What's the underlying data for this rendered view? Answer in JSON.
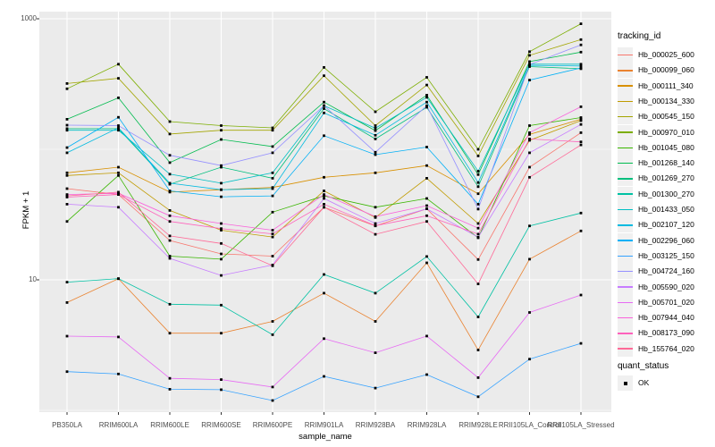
{
  "figure": {
    "y_axis": {
      "title": "FPKM + 1",
      "ticks": [
        {
          "value": 1000,
          "label": "1000"
        },
        {
          "value": 10,
          "label": "10"
        }
      ]
    },
    "x_axis": {
      "title": "sample_name"
    },
    "legend": {
      "tracking_title": "tracking_id",
      "quant_title": "quant_status",
      "quant_ok_label": "OK"
    },
    "colors": {
      "panel_bg": "#EBEBEB",
      "gridline": "#FFFFFF",
      "legend_key_bg": "#F0F0F0",
      "axis_text": "#4D4D4D",
      "tick_mark": "#333333",
      "point": "#000000"
    }
  },
  "chart_data": {
    "type": "line",
    "title": "",
    "xlabel": "sample_name",
    "ylabel": "FPKM + 1",
    "y_scale": "log10",
    "ylim": [
      1,
      1130
    ],
    "y_labeled_breaks": [
      1000,
      10
    ],
    "y_minor_gridlines": [
      100,
      1
    ],
    "grid": true,
    "legend_position": "right",
    "point_marker": "black-square",
    "quant_status": "OK",
    "categories": [
      "PB350LA",
      "RRIM600LA",
      "RRIM600LE",
      "RRIM600SE",
      "RRIM600PE",
      "RRIM901LA",
      "RRIM928BA",
      "RRIM928LA",
      "RRIM928LE",
      "RRII105LA_Control",
      "RRII105LA_Stressed"
    ],
    "series": [
      {
        "name": "Hb_000025_600",
        "color": "#F8766D",
        "values": [
          50,
          45,
          20,
          15.8,
          15.2,
          36,
          25.9,
          35,
          14.3,
          73,
          134
        ]
      },
      {
        "name": "Hb_000099_060",
        "color": "#EA8331",
        "values": [
          6.7,
          10.2,
          3.9,
          3.9,
          4.8,
          7.9,
          4.8,
          13.5,
          2.9,
          14.4,
          23.7
        ]
      },
      {
        "name": "Hb_000111_340",
        "color": "#D89000",
        "values": [
          66,
          73,
          47,
          49,
          51,
          61,
          66,
          75,
          45.7,
          130,
          170
        ]
      },
      {
        "name": "Hb_000134_330",
        "color": "#C09B00",
        "values": [
          63,
          66,
          34,
          24,
          21.3,
          48,
          30,
          60,
          27,
          117,
          166
        ]
      },
      {
        "name": "Hb_000545_150",
        "color": "#A3A500",
        "values": [
          319,
          350,
          131,
          140,
          140,
          366,
          152,
          311,
          89,
          525,
          692
        ]
      },
      {
        "name": "Hb_000970_010",
        "color": "#7CAE00",
        "values": [
          291,
          449,
          163,
          152,
          146,
          424,
          194,
          356,
          100,
          560,
          916
        ]
      },
      {
        "name": "Hb_001045_080",
        "color": "#39B600",
        "values": [
          28,
          63,
          15.2,
          14.4,
          33,
          44,
          36,
          42,
          21,
          152,
          175
        ]
      },
      {
        "name": "Hb_001268_140",
        "color": "#00BB4E",
        "values": [
          170,
          248,
          79,
          119,
          105,
          230,
          139,
          260,
          64,
          470,
          555
        ]
      },
      {
        "name": "Hb_001269_270",
        "color": "#00BF7D",
        "values": [
          144,
          144,
          54,
          73,
          60,
          205,
          120,
          210,
          51.7,
          430,
          414
        ]
      },
      {
        "name": "Hb_001300_270",
        "color": "#00C1A3",
        "values": [
          9.6,
          10.2,
          6.5,
          6.4,
          3.8,
          11,
          7.9,
          15.1,
          5.2,
          25.9,
          32.5
        ]
      },
      {
        "name": "Hb_001433_050",
        "color": "#00BFC4",
        "values": [
          140,
          140,
          64.5,
          55,
          66,
          216,
          145,
          250,
          68,
          449,
          449
        ]
      },
      {
        "name": "Hb_002107_120",
        "color": "#00BAE0",
        "values": [
          94,
          146,
          55,
          49,
          50,
          190,
          128,
          230,
          55.6,
          440,
          435
        ]
      },
      {
        "name": "Hb_002296_060",
        "color": "#00B0F6",
        "values": [
          103,
          176,
          48,
          43.3,
          44,
          127,
          91,
          104,
          38,
          339,
          420
        ]
      },
      {
        "name": "Hb_003125_150",
        "color": "#35A2FF",
        "values": [
          1.98,
          1.9,
          1.45,
          1.44,
          1.19,
          1.82,
          1.48,
          1.88,
          1.27,
          2.47,
          3.26
        ]
      },
      {
        "name": "Hb_004724_160",
        "color": "#9590FF",
        "values": [
          153,
          152,
          90,
          75,
          94,
          216,
          95,
          216,
          34.8,
          445,
          631
        ]
      },
      {
        "name": "Hb_005590_020",
        "color": "#C77CFF",
        "values": [
          38,
          36,
          14.6,
          10.8,
          13,
          42,
          27,
          35,
          21.2,
          94,
          155
        ]
      },
      {
        "name": "Hb_005701_020",
        "color": "#E76BF3",
        "values": [
          3.7,
          3.65,
          1.76,
          1.72,
          1.51,
          3.54,
          2.76,
          3.71,
          1.78,
          5.62,
          7.65
        ]
      },
      {
        "name": "Hb_007944_040",
        "color": "#FA62DB",
        "values": [
          45,
          46,
          31,
          27,
          24,
          45,
          30.5,
          37,
          24.9,
          134,
          212
        ]
      },
      {
        "name": "Hb_008173_090",
        "color": "#FF62BC",
        "values": [
          43,
          45,
          28,
          24.7,
          22.5,
          38,
          26,
          31,
          22.4,
          120,
          114
        ]
      },
      {
        "name": "Hb_155764_020",
        "color": "#FF6A98",
        "values": [
          44,
          47,
          21.7,
          19,
          12.8,
          36,
          22.3,
          28,
          9.3,
          61,
          108
        ]
      }
    ]
  }
}
